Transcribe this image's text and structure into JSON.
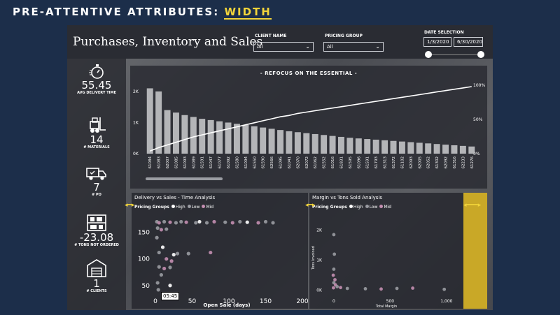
{
  "slide": {
    "title_prefix": "PRE-ATTENTIVE ATTRIBUTES: ",
    "title_highlight": "WIDTH"
  },
  "header": {
    "title": "Purchases, Inventory and Sales",
    "client_name": {
      "label": "CLIENT NAME",
      "value": "All"
    },
    "pricing_group": {
      "label": "PRICING GROUP",
      "value": "All"
    },
    "date_selection": {
      "label": "DATE SELECTION",
      "start": "1/3/2020",
      "end": "6/30/2020"
    }
  },
  "kpis": [
    {
      "value": "55.45",
      "label": "AVG DELIVERY TIME",
      "icon": "stopwatch-icon"
    },
    {
      "value": "14",
      "label": "# MATERIALS",
      "icon": "forklift-icon"
    },
    {
      "value": "7",
      "label": "# PO",
      "icon": "delivery-truck-icon"
    },
    {
      "value": "-23.08",
      "label": "# TONS NOT ORDERED",
      "icon": "shelves-icon"
    },
    {
      "value": "1",
      "label": "# CLIENTS",
      "icon": "warehouse-icon"
    }
  ],
  "chart_data": [
    {
      "type": "bar",
      "title": "- REFOCUS ON THE ESSENTIAL -",
      "y_ticks": [
        "2K",
        "1K",
        "0K"
      ],
      "y2_ticks": [
        "100%",
        "50%",
        "0%"
      ],
      "ylim": [
        0,
        2200
      ],
      "categories": [
        "61084",
        "61083",
        "62007",
        "61085",
        "61093",
        "61089",
        "61591",
        "61047",
        "61077",
        "61092",
        "61580",
        "61094",
        "61550",
        "61590",
        "62566",
        "61095",
        "61041",
        "62070",
        "62072",
        "61062",
        "61552",
        "61016",
        "61831",
        "61595",
        "61096",
        "61591",
        "61793",
        "61313",
        "61372",
        "61102",
        "62093",
        "62005",
        "62052",
        "61302",
        "62092",
        "61316",
        "62233",
        "61276"
      ],
      "values": [
        2100,
        2000,
        1400,
        1320,
        1240,
        1180,
        1120,
        1080,
        1040,
        1000,
        960,
        920,
        880,
        840,
        800,
        760,
        720,
        690,
        660,
        630,
        600,
        570,
        540,
        510,
        490,
        470,
        450,
        430,
        410,
        390,
        370,
        350,
        330,
        310,
        290,
        270,
        250,
        230
      ],
      "cumulative_percent": [
        4,
        9,
        13,
        17,
        21,
        25,
        28,
        31,
        34,
        37,
        40,
        43,
        46,
        49,
        52,
        55,
        57,
        60,
        62,
        64,
        66,
        68,
        70,
        72,
        74,
        76,
        78,
        80,
        82,
        84,
        86,
        88,
        90,
        92,
        94,
        96,
        98,
        100
      ]
    },
    {
      "type": "scatter",
      "title": "Delivery vs Sales - Time Analysis",
      "legend_title": "Pricing Groups",
      "legend": [
        {
          "name": "High",
          "color": "#ffffff"
        },
        {
          "name": "Low",
          "color": "#9a9ca2"
        },
        {
          "name": "Mid",
          "color": "#c48fb1"
        }
      ],
      "xlabel": "Open Sale (days)",
      "x_ticks": [
        "0",
        "50",
        "100",
        "150",
        "200"
      ],
      "y_ticks": [
        "150",
        "100",
        "50"
      ],
      "xlim": [
        0,
        200
      ],
      "ylim": [
        30,
        185
      ],
      "points": [
        {
          "x": 2,
          "y": 170,
          "g": "Low"
        },
        {
          "x": 5,
          "y": 168,
          "g": "Mid"
        },
        {
          "x": 12,
          "y": 170,
          "g": "Low"
        },
        {
          "x": 20,
          "y": 169,
          "g": "Mid"
        },
        {
          "x": 28,
          "y": 168,
          "g": "Low"
        },
        {
          "x": 35,
          "y": 170,
          "g": "Low"
        },
        {
          "x": 42,
          "y": 169,
          "g": "Mid"
        },
        {
          "x": 55,
          "y": 168,
          "g": "Low"
        },
        {
          "x": 60,
          "y": 170,
          "g": "High"
        },
        {
          "x": 70,
          "y": 168,
          "g": "Low"
        },
        {
          "x": 80,
          "y": 170,
          "g": "Mid"
        },
        {
          "x": 95,
          "y": 169,
          "g": "Low"
        },
        {
          "x": 105,
          "y": 168,
          "g": "Mid"
        },
        {
          "x": 115,
          "y": 170,
          "g": "Low"
        },
        {
          "x": 125,
          "y": 169,
          "g": "High"
        },
        {
          "x": 140,
          "y": 168,
          "g": "Mid"
        },
        {
          "x": 150,
          "y": 170,
          "g": "Low"
        },
        {
          "x": 160,
          "y": 168,
          "g": "Low"
        },
        {
          "x": 3,
          "y": 158,
          "g": "Low"
        },
        {
          "x": 8,
          "y": 155,
          "g": "Mid"
        },
        {
          "x": 15,
          "y": 156,
          "g": "Low"
        },
        {
          "x": 2,
          "y": 140,
          "g": "Low"
        },
        {
          "x": 10,
          "y": 122,
          "g": "High"
        },
        {
          "x": 5,
          "y": 112,
          "g": "Low"
        },
        {
          "x": 25,
          "y": 108,
          "g": "High"
        },
        {
          "x": 30,
          "y": 110,
          "g": "Low"
        },
        {
          "x": 45,
          "y": 110,
          "g": "Low"
        },
        {
          "x": 75,
          "y": 112,
          "g": "Mid"
        },
        {
          "x": 15,
          "y": 100,
          "g": "Mid"
        },
        {
          "x": 22,
          "y": 96,
          "g": "Mid"
        },
        {
          "x": 5,
          "y": 85,
          "g": "Low"
        },
        {
          "x": 12,
          "y": 82,
          "g": "Mid"
        },
        {
          "x": 20,
          "y": 84,
          "g": "Low"
        },
        {
          "x": 8,
          "y": 70,
          "g": "Low"
        },
        {
          "x": 3,
          "y": 55,
          "g": "Low"
        },
        {
          "x": 20,
          "y": 50,
          "g": "High"
        },
        {
          "x": 4,
          "y": 42,
          "g": "Low"
        }
      ]
    },
    {
      "type": "scatter",
      "title": "Margin vs Tons Sold Analysis",
      "legend_title": "Pricing Groups",
      "legend": [
        {
          "name": "High",
          "color": "#ffffff"
        },
        {
          "name": "Low",
          "color": "#9a9ca2"
        },
        {
          "name": "Mid",
          "color": "#c48fb1"
        }
      ],
      "xlabel": "Total Margin",
      "ylabel": "Tons Invoiced",
      "x_ticks": [
        "0",
        "500",
        "1,000"
      ],
      "y_ticks": [
        "2K",
        "1K",
        "0K"
      ],
      "xlim": [
        -80,
        1100
      ],
      "ylim": [
        -150,
        2500
      ],
      "points": [
        {
          "x": 0,
          "y": 1850,
          "g": "Low"
        },
        {
          "x": 5,
          "y": 1200,
          "g": "Low"
        },
        {
          "x": 0,
          "y": 700,
          "g": "Low"
        },
        {
          "x": -5,
          "y": 500,
          "g": "Mid"
        },
        {
          "x": 10,
          "y": 350,
          "g": "Mid"
        },
        {
          "x": 0,
          "y": 250,
          "g": "Low"
        },
        {
          "x": 15,
          "y": 180,
          "g": "Mid"
        },
        {
          "x": 30,
          "y": 120,
          "g": "Low"
        },
        {
          "x": 60,
          "y": 90,
          "g": "Mid"
        },
        {
          "x": 120,
          "y": 60,
          "g": "Low"
        },
        {
          "x": 280,
          "y": 50,
          "g": "Low"
        },
        {
          "x": 420,
          "y": 40,
          "g": "Mid"
        },
        {
          "x": 560,
          "y": 60,
          "g": "Low"
        },
        {
          "x": 700,
          "y": 70,
          "g": "Mid"
        },
        {
          "x": 980,
          "y": 30,
          "g": "Low"
        },
        {
          "x": -3,
          "y": 80,
          "g": "Mid"
        }
      ]
    }
  ],
  "video": {
    "timestamp": "05:45"
  },
  "colors": {
    "accent": "#f2d43a",
    "bars": "#b4b5b8",
    "high": "#ffffff",
    "low": "#9a9ca2",
    "mid": "#c48fb1"
  }
}
